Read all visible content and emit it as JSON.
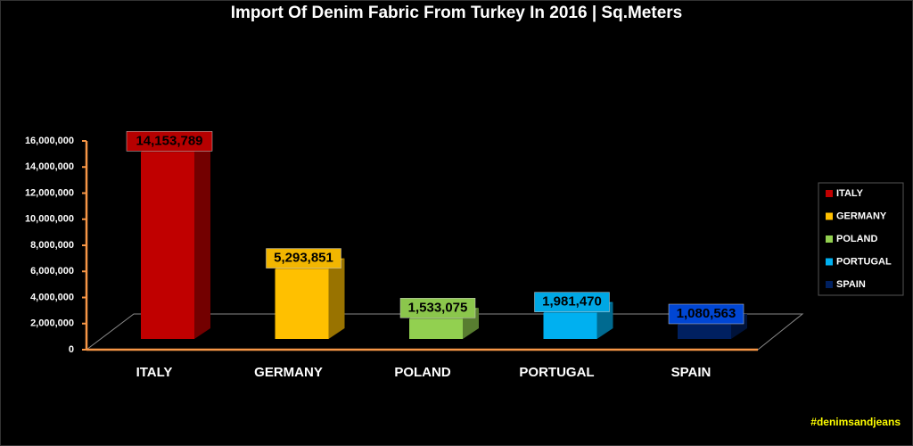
{
  "chart_data": {
    "type": "bar3d",
    "title": "Import Of Denim Fabric From Turkey In 2016 | Sq.Meters",
    "categories": [
      "ITALY",
      "GERMANY",
      "POLAND",
      "PORTUGAL",
      "SPAIN"
    ],
    "values": [
      14153789,
      5293851,
      1533075,
      1981470,
      1080563
    ],
    "value_labels": [
      "14,153,789",
      "5,293,851",
      "1,533,075",
      "1,981,470",
      "1,080,563"
    ],
    "colors": [
      "#c00000",
      "#ffc000",
      "#92d050",
      "#00b0f0",
      "#002060"
    ],
    "ylim": [
      0,
      16000000
    ],
    "yticks": [
      0,
      {
        "value": 2000000,
        "label": "2,000,000"
      },
      {
        "value": 4000000,
        "label": "4,000,000"
      },
      {
        "value": 6000000,
        "label": "6,000,000"
      },
      {
        "value": 8000000,
        "label": "8,000,000"
      },
      {
        "value": 10000000,
        "label": "10,000,000"
      },
      {
        "value": 12000000,
        "label": "12,000,000"
      },
      {
        "value": 14000000,
        "label": "14,000,000"
      },
      {
        "value": 16000000,
        "label": "16,000,000"
      }
    ],
    "legend": "right",
    "watermark": "#denimsandjeans"
  }
}
